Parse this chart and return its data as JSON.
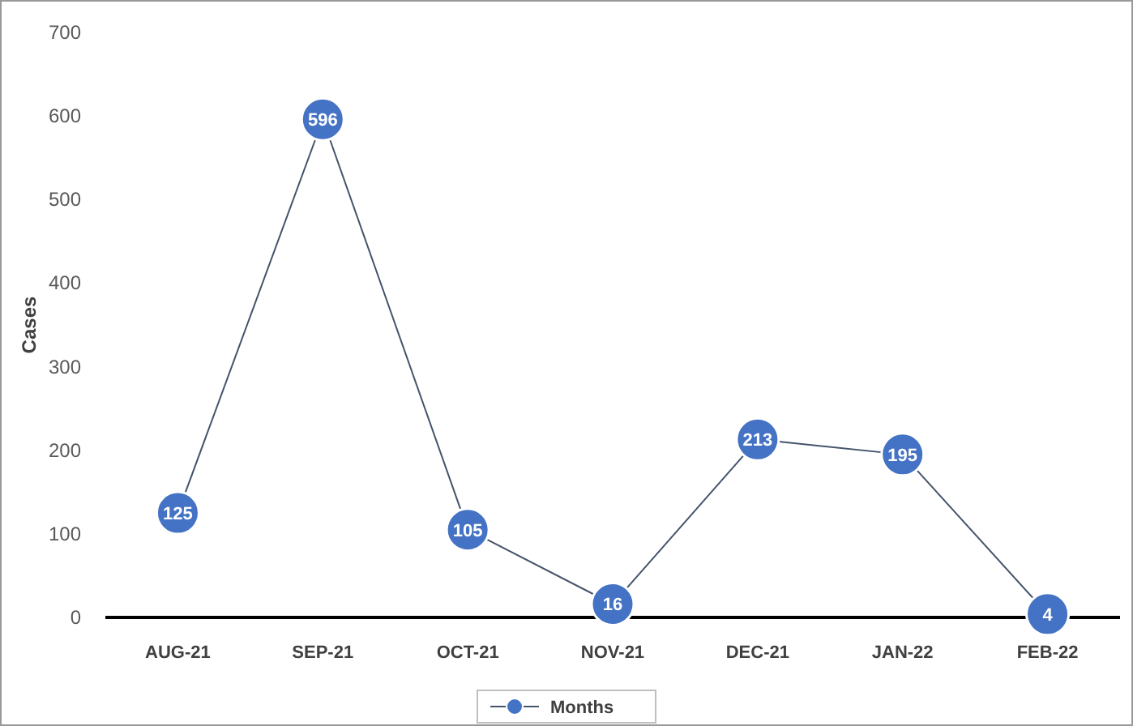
{
  "chart_data": {
    "type": "line",
    "ylabel": "Cases",
    "categories": [
      "AUG-21",
      "SEP-21",
      "OCT-21",
      "NOV-21",
      "DEC-21",
      "JAN-22",
      "FEB-22"
    ],
    "series": [
      {
        "name": "Months",
        "color": "#4472c4",
        "values": [
          125,
          596,
          105,
          16,
          213,
          195,
          4
        ]
      }
    ],
    "ylim": [
      0,
      700
    ],
    "yticks": [
      0,
      100,
      200,
      300,
      400,
      500,
      600,
      700
    ],
    "grid": false,
    "legend": "bottom",
    "marker": "circle",
    "data_labels": true
  }
}
